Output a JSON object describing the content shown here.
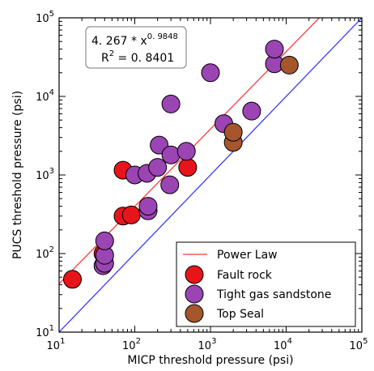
{
  "chart_data": {
    "type": "scatter",
    "xlabel": "MICP threshold pressure (psi)",
    "ylabel": "PUCS threshold pressure (psi)",
    "xscale": "log",
    "yscale": "log",
    "xlim": [
      10,
      100000
    ],
    "ylim": [
      10,
      100000
    ],
    "x_ticks": [
      {
        "value": 10,
        "base": "10",
        "exp": "1"
      },
      {
        "value": 100,
        "base": "10",
        "exp": "2"
      },
      {
        "value": 1000,
        "base": "10",
        "exp": "3"
      },
      {
        "value": 10000,
        "base": "10",
        "exp": "4"
      },
      {
        "value": 100000,
        "base": "10",
        "exp": "5"
      }
    ],
    "y_ticks": [
      {
        "value": 10,
        "base": "10",
        "exp": "1"
      },
      {
        "value": 100,
        "base": "10",
        "exp": "2"
      },
      {
        "value": 1000,
        "base": "10",
        "exp": "3"
      },
      {
        "value": 10000,
        "base": "10",
        "exp": "4"
      },
      {
        "value": 100000,
        "base": "10",
        "exp": "5"
      }
    ],
    "grid": false,
    "legend_position": "bottom-right",
    "annotation": {
      "equation_main": "4. 267 * x",
      "equation_exp": "0. 9848",
      "r2_label": "R",
      "r2_sup": "2",
      "r2_value": " = 0. 8401"
    },
    "power_law": {
      "name": "Power Law",
      "coefficient": 4.267,
      "exponent": 0.9848,
      "color": "#ff3b3b"
    },
    "one_to_one_line": {
      "color": "#3a3aff"
    },
    "series": [
      {
        "name": "Fault rock",
        "color": "#e8141b",
        "points": [
          {
            "x": 15,
            "y": 47
          },
          {
            "x": 38,
            "y": 100
          },
          {
            "x": 70,
            "y": 300
          },
          {
            "x": 90,
            "y": 310
          },
          {
            "x": 70,
            "y": 1150
          },
          {
            "x": 500,
            "y": 1250
          }
        ]
      },
      {
        "name": "Tight gas sandstone",
        "color": "#9b44b4",
        "points": [
          {
            "x": 38,
            "y": 70
          },
          {
            "x": 40,
            "y": 75
          },
          {
            "x": 40,
            "y": 95
          },
          {
            "x": 40,
            "y": 145
          },
          {
            "x": 100,
            "y": 1000
          },
          {
            "x": 145,
            "y": 1050
          },
          {
            "x": 150,
            "y": 350
          },
          {
            "x": 150,
            "y": 400
          },
          {
            "x": 200,
            "y": 1250
          },
          {
            "x": 210,
            "y": 2400
          },
          {
            "x": 290,
            "y": 750
          },
          {
            "x": 300,
            "y": 1800
          },
          {
            "x": 300,
            "y": 8000
          },
          {
            "x": 480,
            "y": 2000
          },
          {
            "x": 1000,
            "y": 20000
          },
          {
            "x": 1500,
            "y": 4500
          },
          {
            "x": 3500,
            "y": 6500
          },
          {
            "x": 7000,
            "y": 26000
          },
          {
            "x": 7000,
            "y": 40000
          }
        ]
      },
      {
        "name": "Top Seal",
        "color": "#a5562a",
        "points": [
          {
            "x": 2000,
            "y": 2600
          },
          {
            "x": 2000,
            "y": 3500
          },
          {
            "x": 11000,
            "y": 25000
          }
        ]
      }
    ]
  }
}
